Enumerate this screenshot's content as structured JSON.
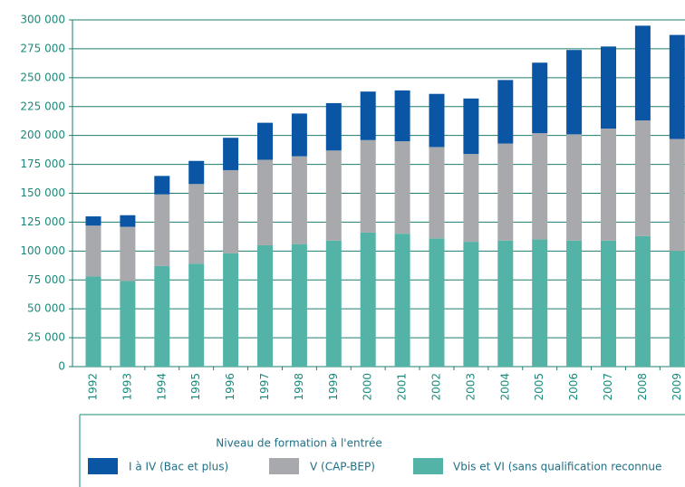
{
  "chart_data": {
    "type": "stacked_bar",
    "categories": [
      "1992",
      "1993",
      "1994",
      "1995",
      "1996",
      "1997",
      "1998",
      "1999",
      "2000",
      "2001",
      "2002",
      "2003",
      "2004",
      "2005",
      "2006",
      "2007",
      "2008",
      "2009"
    ],
    "series": [
      {
        "name": "Vbis et VI (sans qualification reconnue",
        "color": "#52b3a6",
        "values": [
          78000,
          74000,
          87000,
          89000,
          98000,
          105000,
          106000,
          109000,
          116000,
          115000,
          111000,
          108000,
          109000,
          110000,
          109000,
          109000,
          113000,
          100000
        ]
      },
      {
        "name": "V (CAP-BEP)",
        "color": "#a7a9ac",
        "values": [
          44000,
          47000,
          62000,
          69000,
          72000,
          74000,
          76000,
          78000,
          80000,
          80000,
          79000,
          76000,
          84000,
          92000,
          92000,
          97000,
          100000,
          97000
        ]
      },
      {
        "name": "I à IV (Bac et plus)",
        "color": "#0b56a4",
        "values": [
          8000,
          10000,
          16000,
          20000,
          28000,
          32000,
          37000,
          41000,
          42000,
          44000,
          46000,
          48000,
          55000,
          61000,
          73000,
          71000,
          82000,
          90000
        ]
      }
    ],
    "legend_title": "Niveau de formation à l'entrée",
    "ylim": [
      0,
      300000
    ],
    "yticks": [
      0,
      {
        "value": 25000,
        "label": "25 000"
      },
      {
        "value": 50000,
        "label": "50 000"
      },
      {
        "value": 75000,
        "label": "75 000"
      },
      {
        "value": 100000,
        "label": "100 000"
      },
      {
        "value": 125000,
        "label": "125 000"
      },
      {
        "value": 150000,
        "label": "150 000"
      },
      {
        "value": 175000,
        "label": "175 000"
      },
      {
        "value": 200000,
        "label": "200 000"
      },
      {
        "value": 225000,
        "label": "225 000"
      },
      {
        "value": 250000,
        "label": "250 000"
      },
      {
        "value": 275000,
        "label": "275 000"
      },
      {
        "value": 300000,
        "label": "300 000"
      }
    ],
    "grid": true
  }
}
